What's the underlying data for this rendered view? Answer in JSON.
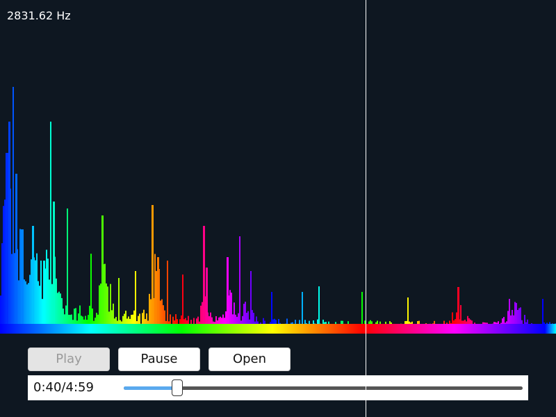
{
  "readout": {
    "frequency": "2831.62 Hz"
  },
  "spectrum": {
    "description_colors": [
      "#0000ff",
      "#00ffff",
      "#00ff00",
      "#ffff00",
      "#ff0000",
      "#ff00ff",
      "#0000ff"
    ],
    "background": "#0e1721"
  },
  "controls": {
    "play_label": "Play",
    "play_enabled": false,
    "pause_label": "Pause",
    "open_label": "Open"
  },
  "playback": {
    "time_text": "0:40/4:59",
    "progress": 0.134,
    "fill_color": "#5aa9ee"
  }
}
